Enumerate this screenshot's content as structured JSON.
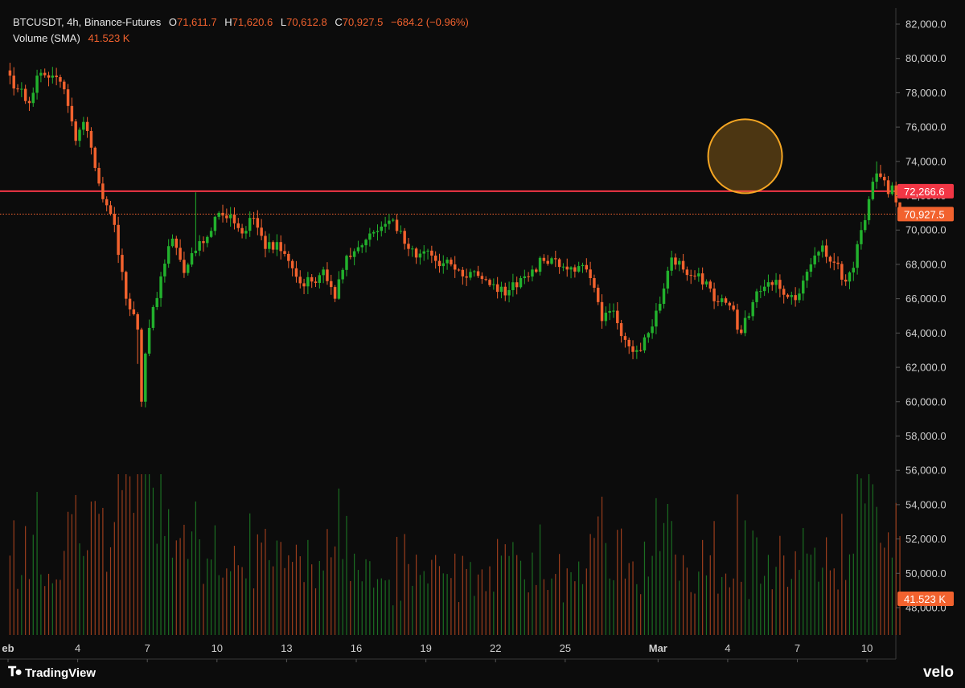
{
  "header": {
    "symbol": "BTCUSDT, 4h, Binance-Futures",
    "open_label": "O",
    "open": "71,611.7",
    "high_label": "H",
    "high": "71,620.6",
    "low_label": "L",
    "low": "70,612.8",
    "close_label": "C",
    "close": "70,927.5",
    "change": "−684.2 (−0.96%)",
    "volume_label": "Volume (SMA)",
    "volume_value": "41.523 K"
  },
  "footer": {
    "tv_brand": "TradingView",
    "velo_brand": "velo"
  },
  "colors": {
    "background": "#0c0c0c",
    "up": "#22b12d",
    "down": "#f2622e",
    "level_line": "#f23645",
    "highlight": "#f5a623",
    "axis_text": "#cfcfcf"
  },
  "chart_data": {
    "type": "candlestick",
    "y_axis": {
      "range": [
        46000,
        82000
      ],
      "ticks": [
        "82,000.0",
        "80,000.0",
        "78,000.0",
        "76,000.0",
        "74,000.0",
        "72,000.0",
        "70,000.0",
        "68,000.0",
        "66,000.0",
        "64,000.0",
        "62,000.0",
        "60,000.0",
        "58,000.0",
        "56,000.0",
        "54,000.0",
        "52,000.0",
        "50,000.0",
        "48,000.0"
      ]
    },
    "x_axis": {
      "start_day": 1,
      "end_day": 39,
      "bars_per_day": 6,
      "labels": [
        {
          "day": 1,
          "text": "eb",
          "bold": true
        },
        {
          "day": 4,
          "text": "4"
        },
        {
          "day": 7,
          "text": "7"
        },
        {
          "day": 10,
          "text": "10"
        },
        {
          "day": 13,
          "text": "13"
        },
        {
          "day": 16,
          "text": "16"
        },
        {
          "day": 19,
          "text": "19"
        },
        {
          "day": 22,
          "text": "22"
        },
        {
          "day": 25,
          "text": "25"
        },
        {
          "day": 29,
          "text": "Mar",
          "bold": true
        },
        {
          "day": 32,
          "text": "4"
        },
        {
          "day": 35,
          "text": "7"
        },
        {
          "day": 38,
          "text": "10"
        }
      ]
    },
    "price_lines": [
      {
        "name": "resistance",
        "value": 72266.6,
        "label": "72,266.6",
        "style": "solid",
        "color": "#f23645"
      },
      {
        "name": "last-price",
        "value": 70927.5,
        "label": "70,927.5",
        "style": "dotted",
        "color": "#f2622e"
      }
    ],
    "volume_label": "41.523 K",
    "highlight": {
      "day": 32.75,
      "price": 74300
    },
    "anchors": [
      [
        0,
        79000
      ],
      [
        2,
        78200
      ],
      [
        5,
        77400
      ],
      [
        7,
        79000
      ],
      [
        11,
        79000
      ],
      [
        14,
        78200
      ],
      [
        17,
        75200
      ],
      [
        19,
        76300
      ],
      [
        21,
        74800
      ],
      [
        24,
        71800
      ],
      [
        27,
        70300
      ],
      [
        30,
        66000
      ],
      [
        33,
        64200
      ],
      [
        34,
        60000
      ],
      [
        35,
        62800
      ],
      [
        36,
        64300
      ],
      [
        39,
        67300
      ],
      [
        42,
        69500
      ],
      [
        45,
        67500
      ],
      [
        48,
        68800
      ],
      [
        51,
        69600
      ],
      [
        54,
        71000
      ],
      [
        57,
        70900
      ],
      [
        60,
        69800
      ],
      [
        63,
        70700
      ],
      [
        66,
        68900
      ],
      [
        69,
        69300
      ],
      [
        72,
        68200
      ],
      [
        75,
        66900
      ],
      [
        78,
        67000
      ],
      [
        81,
        67700
      ],
      [
        84,
        66000
      ],
      [
        87,
        68500
      ],
      [
        90,
        69000
      ],
      [
        93,
        69800
      ],
      [
        96,
        70200
      ],
      [
        99,
        70600
      ],
      [
        102,
        69200
      ],
      [
        105,
        68400
      ],
      [
        108,
        68800
      ],
      [
        111,
        67900
      ],
      [
        114,
        68000
      ],
      [
        117,
        67300
      ],
      [
        120,
        67600
      ],
      [
        123,
        67100
      ],
      [
        126,
        66400
      ],
      [
        129,
        66500
      ],
      [
        132,
        67200
      ],
      [
        135,
        67700
      ],
      [
        138,
        68200
      ],
      [
        141,
        68300
      ],
      [
        144,
        67700
      ],
      [
        147,
        67900
      ],
      [
        150,
        67200
      ],
      [
        153,
        64700
      ],
      [
        156,
        65300
      ],
      [
        159,
        63600
      ],
      [
        162,
        63000
      ],
      [
        165,
        64000
      ],
      [
        168,
        65700
      ],
      [
        171,
        68400
      ],
      [
        174,
        67700
      ],
      [
        177,
        67300
      ],
      [
        180,
        67000
      ],
      [
        183,
        65800
      ],
      [
        186,
        65600
      ],
      [
        189,
        64000
      ],
      [
        192,
        65800
      ],
      [
        195,
        66700
      ],
      [
        198,
        67100
      ],
      [
        201,
        66100
      ],
      [
        204,
        66300
      ],
      [
        207,
        68000
      ],
      [
        210,
        69100
      ],
      [
        213,
        68100
      ],
      [
        216,
        67000
      ],
      [
        218,
        67800
      ],
      [
        220,
        70000
      ],
      [
        222,
        71800
      ],
      [
        224,
        73300
      ],
      [
        225,
        73100
      ],
      [
        226,
        72900
      ],
      [
        227,
        72100
      ],
      [
        228,
        72600
      ],
      [
        229,
        71611.7
      ],
      [
        230,
        70927.5
      ]
    ],
    "last_candle": {
      "open": 71611.7,
      "high": 71620.6,
      "low": 70612.8,
      "close": 70927.5
    }
  }
}
